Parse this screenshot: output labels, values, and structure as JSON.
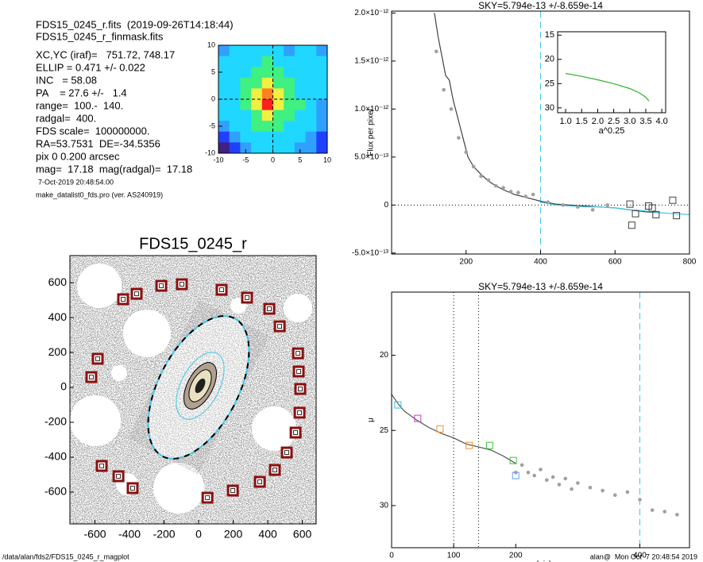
{
  "header": {
    "lines": [
      "FDS15_0245_r.fits  (2019-09-26T14:18:44)",
      "FDS15_0245_r_finmask.fits",
      "XC,YC (iraf)=   751.72, 748.17",
      "ELLIP = 0.471 +/- 0.022",
      "INC   = 58.08",
      "PA    = 27.6 +/-   1.4",
      "range=  100.-  140.",
      "radgal=  400.",
      "FDS scale=  100000000.",
      "RA=53.7531  DE=-34.5356",
      "pix 0 0.200 arcsec",
      "mag=  17.18  mag(radgal)=  17.18"
    ],
    "small": [
      "7-Oct-2019 20:48:54.00",
      "make_datalist0_fds.pro (ver. AS240919)"
    ]
  },
  "footer": {
    "left": "/data/alan/fds2/FDS15_0245_r_magplot",
    "right": "alan@  Mon Oct  7 20:48:54 2019"
  },
  "chart_data": [
    {
      "type": "heatmap",
      "xlim": [
        -10,
        10
      ],
      "ylim": [
        -10,
        10
      ],
      "xticks": [
        -10,
        -5,
        0,
        5,
        10
      ],
      "yticks": [
        -10,
        -5,
        0,
        5,
        10
      ],
      "colors": [
        "#402080",
        "#2040ff",
        "#30a0ff",
        "#20d8ff",
        "#40f080",
        "#f0f040",
        "#ff8020",
        "#ff2020"
      ],
      "z": [
        [
          2,
          3,
          3,
          3,
          3,
          3,
          2,
          3,
          3,
          2
        ],
        [
          3,
          3,
          3,
          3,
          4,
          3,
          3,
          3,
          3,
          3
        ],
        [
          3,
          3,
          3,
          4,
          4,
          4,
          3,
          3,
          3,
          3
        ],
        [
          3,
          3,
          4,
          4,
          5,
          4,
          4,
          3,
          3,
          3
        ],
        [
          3,
          3,
          4,
          5,
          6,
          5,
          4,
          3,
          3,
          3
        ],
        [
          3,
          3,
          4,
          5,
          7,
          5,
          4,
          4,
          3,
          2
        ],
        [
          3,
          3,
          3,
          4,
          5,
          4,
          4,
          3,
          3,
          2
        ],
        [
          2,
          3,
          3,
          4,
          4,
          4,
          3,
          3,
          3,
          2
        ],
        [
          1,
          2,
          3,
          3,
          3,
          3,
          3,
          3,
          2,
          1
        ],
        [
          0,
          1,
          2,
          3,
          3,
          3,
          3,
          2,
          2,
          1
        ]
      ]
    },
    {
      "type": "line",
      "title": "SKY=5.794e-13 +/-8.659e-14",
      "ylabel": "Flux per pixel",
      "xlim": [
        0,
        800
      ],
      "ylim": [
        -5.1e-13,
        2.02e-12
      ],
      "xticks": [
        200,
        400,
        600,
        800
      ],
      "yticks": [
        {
          "value": -5e-13,
          "label": "-5.0×10⁻¹³"
        },
        0,
        {
          "value": 5e-13,
          "label": "5.0×10⁻¹³"
        },
        {
          "value": 1e-12,
          "label": "1.0×10⁻¹²"
        },
        {
          "value": 1.5e-12,
          "label": "1.5×10⁻¹²"
        },
        {
          "value": 2e-12,
          "label": "2.0×10⁻¹²"
        }
      ],
      "vlines": [
        {
          "value": 400,
          "color": "#40c8e8",
          "style": "dashed"
        }
      ],
      "hlines": [
        {
          "value": 0,
          "color": "#000000",
          "style": "dotted"
        }
      ],
      "series": [
        {
          "style": "line",
          "color": "#404040",
          "x": [
            115,
            125,
            135,
            145,
            155,
            165,
            175,
            185,
            195,
            205,
            220,
            240,
            260,
            280,
            300,
            330,
            360,
            400,
            440,
            480,
            520,
            560,
            600,
            640,
            680,
            720
          ],
          "values": [
            2e-12,
            1.75e-12,
            1.55e-12,
            1.35e-12,
            1.3e-12,
            1.1e-12,
            9.5e-13,
            8e-13,
            6.5e-13,
            5e-13,
            4e-13,
            3.2e-13,
            2.5e-13,
            2e-13,
            1.6e-13,
            1.1e-13,
            8e-14,
            4e-14,
            1e-14,
            0,
            -1e-14,
            -2e-14,
            -3e-14,
            -5e-14,
            -7e-14,
            -8e-14
          ]
        },
        {
          "style": "line",
          "color": "#40c8e8",
          "x": [
            400,
            440,
            480,
            520,
            560,
            600,
            640,
            680,
            720,
            760,
            800
          ],
          "values": [
            3e-14,
            0,
            -1e-14,
            -2e-14,
            -2e-14,
            -3e-14,
            -5e-14,
            -6e-14,
            -8e-14,
            -9e-14,
            -1e-13
          ]
        },
        {
          "style": "points",
          "color": "#a0a0a0",
          "x": [
            120,
            140,
            160,
            180,
            200,
            220,
            240,
            260,
            280,
            300,
            320,
            340,
            360,
            380,
            420,
            460,
            500,
            540,
            580
          ],
          "values": [
            1.6e-12,
            1.2e-12,
            1e-12,
            7e-13,
            5.5e-13,
            4e-13,
            3e-13,
            2.6e-13,
            2e-13,
            1.8e-13,
            1.4e-13,
            1.3e-13,
            9e-14,
            1.1e-13,
            3e-14,
            0,
            -2e-14,
            -5e-14,
            0
          ]
        },
        {
          "style": "squares",
          "color": "#404040",
          "x": [
            640,
            645,
            655,
            690,
            700,
            710,
            755,
            765
          ],
          "values": [
            1e-14,
            -2.1e-13,
            -9e-14,
            -1e-14,
            -3e-14,
            -1e-13,
            5e-14,
            -1.1e-13
          ]
        }
      ]
    },
    {
      "type": "line",
      "xlabel": "a^0.25",
      "xlim": [
        0.75,
        4.12
      ],
      "ylim": [
        31,
        14.3
      ],
      "xticks": [
        {
          "value": 1,
          "label": "1.0"
        },
        1.5,
        {
          "value": 2,
          "label": "2.0"
        },
        2.5,
        {
          "value": 3,
          "label": "3.0"
        },
        3.5,
        {
          "value": 4,
          "label": "4.0"
        }
      ],
      "yticks": [
        15,
        20,
        25,
        30
      ],
      "series": [
        {
          "style": "line",
          "color": "#30b030",
          "x": [
            1.0,
            1.5,
            2.0,
            2.5,
            3.0,
            3.3,
            3.5,
            3.6
          ],
          "values": [
            22.9,
            23.5,
            24.2,
            25.0,
            26.0,
            26.9,
            27.8,
            28.6
          ]
        }
      ]
    },
    {
      "type": "image",
      "title": "FDS15_0245_r",
      "xlim": [
        -745,
        680
      ],
      "ylim": [
        -782,
        755
      ],
      "xticks": [
        -600,
        -400,
        -200,
        0,
        200,
        400,
        600
      ],
      "yticks": [
        -600,
        -400,
        -200,
        0,
        200,
        400,
        600
      ],
      "series": [
        {
          "style": "squares",
          "color": "#8b1010",
          "x": [
            -437,
            -359,
            -216,
            -97,
            133,
            280,
            409,
            469,
            575,
            579,
            588,
            584,
            561,
            510,
            441,
            354,
            198,
            51,
            -382,
            -464,
            -561,
            -584,
            -621
          ],
          "values": [
            505,
            536,
            582,
            591,
            559,
            514,
            450,
            350,
            195,
            91,
            -9,
            -145,
            -259,
            -373,
            -473,
            -541,
            -591,
            -632,
            -577,
            -509,
            -450,
            164,
            59
          ]
        }
      ]
    },
    {
      "type": "line",
      "title": "SKY=5.794e-13 +/-8.659e-14",
      "xlabel": "a (pix)",
      "ylabel": "μ",
      "xlim": [
        0,
        480
      ],
      "ylim": [
        32.8,
        15.8
      ],
      "xticks": [
        0,
        100,
        200,
        400
      ],
      "yticks": [
        20,
        25,
        30
      ],
      "vlines": [
        {
          "value": 100,
          "color": "#000000",
          "style": "dotted"
        },
        {
          "value": 140,
          "color": "#000000",
          "style": "dotted"
        },
        {
          "value": 400,
          "color": "#40c8e8",
          "style": "dashed"
        }
      ],
      "series": [
        {
          "style": "line",
          "color": "#505050",
          "x": [
            0,
            10,
            20,
            40,
            60,
            80,
            100,
            120,
            140,
            160,
            180,
            200
          ],
          "values": [
            22.6,
            23.2,
            23.7,
            24.3,
            24.8,
            25.2,
            25.5,
            25.9,
            26.1,
            26.3,
            26.7,
            27.2
          ]
        },
        {
          "style": "points",
          "color": "#a0a0a0",
          "x": [
            200,
            210,
            220,
            230,
            240,
            250,
            260,
            270,
            280,
            290,
            300,
            320,
            340,
            360,
            380,
            400,
            420,
            440,
            460
          ],
          "values": [
            27.8,
            27.3,
            27.8,
            28.0,
            27.6,
            28.3,
            28.1,
            28.6,
            28.2,
            28.9,
            28.5,
            28.8,
            29.0,
            29.3,
            29.1,
            29.6,
            30.3,
            30.4,
            30.6
          ]
        },
        {
          "style": "squares",
          "colors": [
            "#30c0e0",
            "#c040c0",
            "#f09030",
            "#f09030",
            "#40c040",
            "#40c040",
            "#60a0ff"
          ],
          "x": [
            10,
            42,
            78,
            125,
            158,
            196,
            200
          ],
          "values": [
            23.3,
            24.2,
            24.9,
            26.0,
            26.0,
            27.0,
            28.0
          ]
        }
      ]
    }
  ]
}
